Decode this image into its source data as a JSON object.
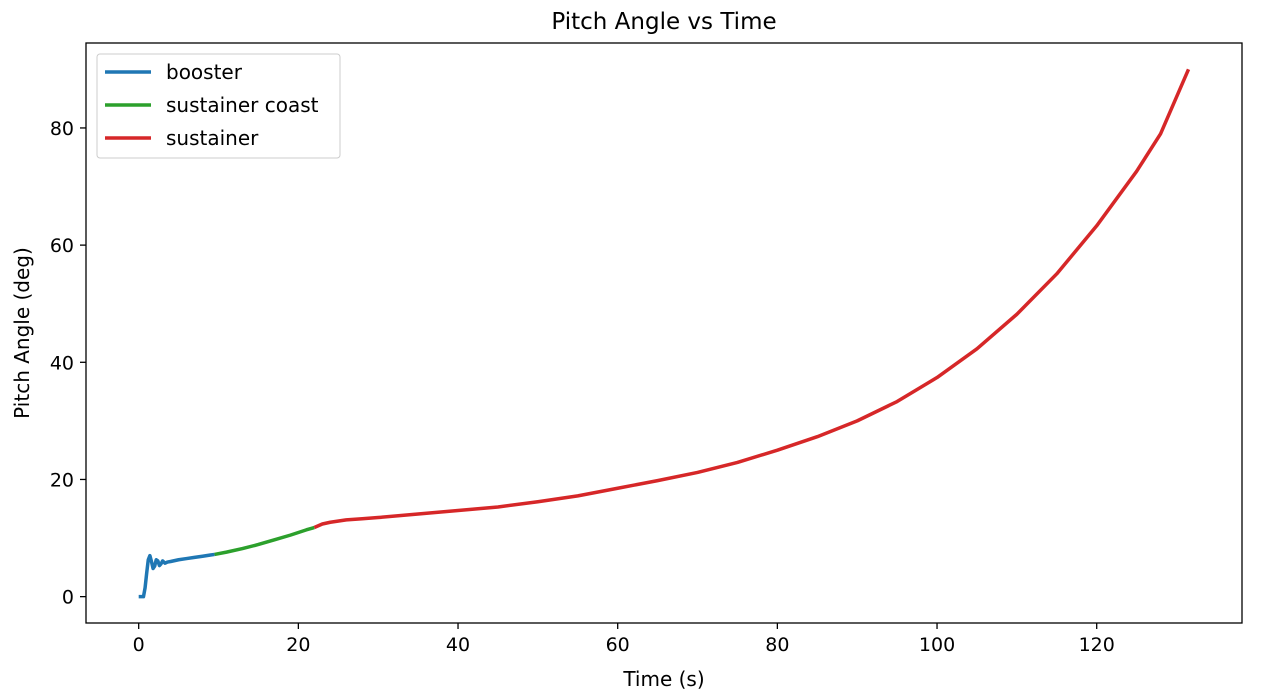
{
  "chart_data": {
    "type": "line",
    "title": "Pitch Angle vs Time",
    "xlabel": "Time (s)",
    "ylabel": "Pitch Angle (deg)",
    "xlim": [
      -6.6,
      138.2
    ],
    "ylim": [
      -4.5,
      94.5
    ],
    "xticks": [
      0,
      20,
      40,
      60,
      80,
      100,
      120
    ],
    "yticks": [
      0,
      20,
      40,
      60,
      80
    ],
    "grid": false,
    "legend_position": "top-left",
    "series": [
      {
        "name": "booster",
        "color": "#1f77b4",
        "x": [
          0,
          0.3,
          0.6,
          0.8,
          1.0,
          1.2,
          1.4,
          1.6,
          1.8,
          2.0,
          2.2,
          2.4,
          2.6,
          2.8,
          3.0,
          3.3,
          3.6,
          4,
          5,
          6,
          7,
          8,
          9,
          9.5
        ],
        "y": [
          0,
          0,
          0,
          1.5,
          4.0,
          6.3,
          7.0,
          6.0,
          4.8,
          5.2,
          6.3,
          6.1,
          5.3,
          5.6,
          6.1,
          5.7,
          5.9,
          6.0,
          6.3,
          6.5,
          6.7,
          6.9,
          7.1,
          7.2
        ]
      },
      {
        "name": "sustainer coast",
        "color": "#2ca02c",
        "x": [
          9.5,
          11,
          13,
          15,
          17,
          19,
          21,
          22
        ],
        "y": [
          7.2,
          7.6,
          8.2,
          8.9,
          9.7,
          10.5,
          11.4,
          11.8
        ]
      },
      {
        "name": "sustainer",
        "color": "#d62728",
        "x": [
          22,
          23,
          24,
          26,
          28,
          30,
          35,
          40,
          45,
          50,
          55,
          60,
          65,
          70,
          75,
          80,
          85,
          90,
          95,
          100,
          105,
          110,
          115,
          120,
          125,
          128,
          131.5
        ],
        "y": [
          11.8,
          12.4,
          12.7,
          13.1,
          13.3,
          13.5,
          14.1,
          14.7,
          15.3,
          16.2,
          17.2,
          18.5,
          19.8,
          21.2,
          22.9,
          25.0,
          27.3,
          30.0,
          33.3,
          37.4,
          42.3,
          48.2,
          55.1,
          63.3,
          72.6,
          79.0,
          90.0
        ]
      }
    ]
  }
}
